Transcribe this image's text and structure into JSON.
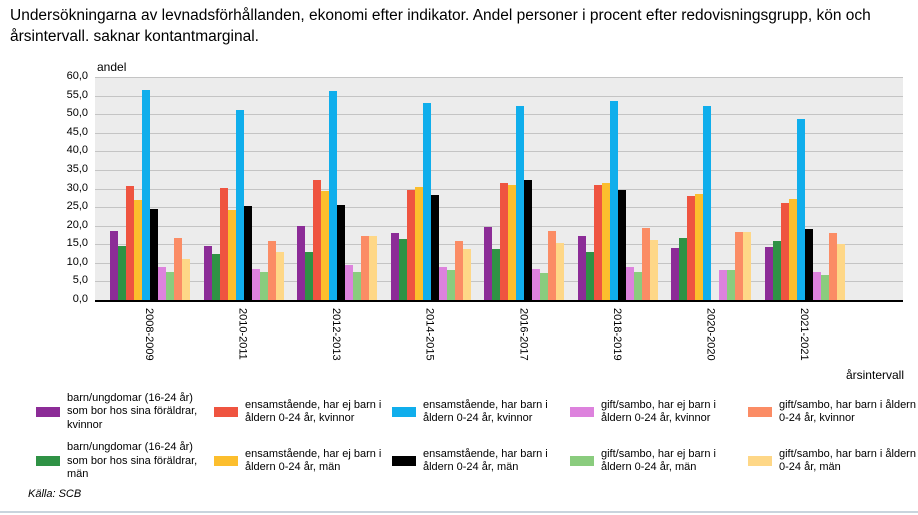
{
  "title": "Undersökningarna av levnadsförhållanden, ekonomi efter indikator. Andel personer i procent efter redovisningsgrupp, kön och årsintervall. saknar kontantmarginal.",
  "source": "Källa: SCB",
  "chart_data": {
    "type": "bar",
    "title": "Undersökningarna av levnadsförhållanden, ekonomi efter indikator. Andel personer i procent efter redovisningsgrupp, kön och årsintervall. saknar kontantmarginal.",
    "ylabel": "andel",
    "xlabel": "årsintervall",
    "ylim": [
      0,
      60
    ],
    "ytick_step": 5,
    "ytick_labels": [
      "0,0",
      "5,0",
      "10,0",
      "15,0",
      "20,0",
      "25,0",
      "30,0",
      "35,0",
      "40,0",
      "45,0",
      "50,0",
      "55,0",
      "60,0"
    ],
    "grid": true,
    "legend_position": "bottom",
    "plot_background": "#ececec",
    "categories": [
      "2008-2009",
      "2010-2011",
      "2012-2013",
      "2014-2015",
      "2016-2017",
      "2018-2019",
      "2020-2020",
      "2021-2021"
    ],
    "series": [
      {
        "name": "barn/ungdomar (16-24 år) som bor hos sina föräldrar, kvinnor",
        "color": "#8c2c97",
        "values": [
          18.5,
          14.4,
          20.0,
          17.9,
          19.6,
          17.2,
          14.1,
          14.2
        ]
      },
      {
        "name": "barn/ungdomar (16-24 år) som bor hos sina föräldrar, män",
        "color": "#2f9245",
        "values": [
          14.6,
          12.4,
          13.0,
          16.4,
          13.8,
          12.9,
          16.7,
          15.9
        ]
      },
      {
        "name": "ensamstående, har ej barn i åldern 0-24 år, kvinnor",
        "color": "#ef5440",
        "values": [
          30.8,
          30.0,
          32.3,
          29.6,
          31.6,
          31.0,
          28.0,
          26.1
        ]
      },
      {
        "name": "ensamstående, har ej barn i åldern 0-24 år, män",
        "color": "#fcbe2d",
        "values": [
          26.8,
          24.2,
          29.3,
          30.3,
          30.9,
          31.6,
          28.6,
          27.1
        ]
      },
      {
        "name": "ensamstående, har barn i åldern 0-24 år, kvinnor",
        "color": "#10aeec",
        "values": [
          56.4,
          51.2,
          56.2,
          53.1,
          52.2,
          53.5,
          52.2,
          48.7
        ]
      },
      {
        "name": "ensamstående, har barn i åldern 0-24 år, män",
        "color": "#000000",
        "values": [
          24.4,
          25.4,
          25.5,
          28.3,
          32.4,
          29.6,
          null,
          19.1
        ]
      },
      {
        "name": "gift/sambo, har ej barn i åldern 0-24 år, kvinnor",
        "color": "#dd82dd",
        "values": [
          8.9,
          8.4,
          9.4,
          8.8,
          8.4,
          8.8,
          8.2,
          7.6
        ]
      },
      {
        "name": "gift/sambo, har ej barn i åldern 0-24 år, män",
        "color": "#8acc7e",
        "values": [
          7.4,
          7.4,
          7.4,
          8.1,
          7.3,
          7.4,
          8.2,
          6.6
        ]
      },
      {
        "name": "gift/sambo, har barn i åldern 0-24 år, kvinnor",
        "color": "#fb8c65",
        "values": [
          16.8,
          15.8,
          17.2,
          15.9,
          18.6,
          19.3,
          18.4,
          17.9
        ]
      },
      {
        "name": "gift/sambo, har barn i åldern 0-24 år, män",
        "color": "#fed787",
        "values": [
          11.0,
          12.8,
          17.2,
          13.8,
          15.3,
          16.1,
          18.4,
          15.2
        ]
      }
    ]
  }
}
